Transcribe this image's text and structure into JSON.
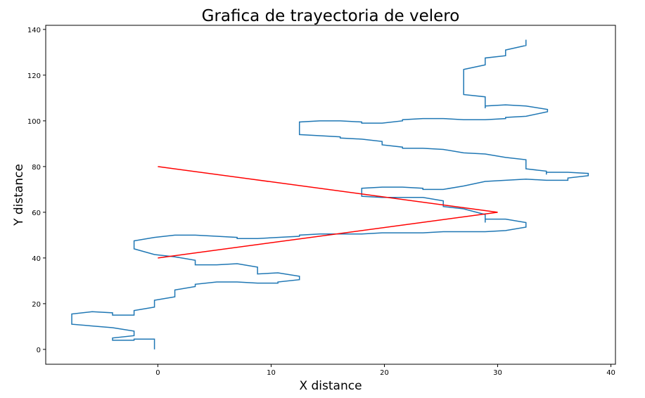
{
  "chart_data": {
    "type": "line",
    "title": "Grafica de trayectoria de velero",
    "xlabel": "X distance",
    "ylabel": "Y distance",
    "xlim": [
      -9.9,
      40.4
    ],
    "ylim": [
      -6.5,
      141.8
    ],
    "xticks": [
      0,
      10,
      20,
      30,
      40
    ],
    "yticks": [
      0,
      20,
      40,
      60,
      80,
      100,
      120,
      140
    ],
    "grid": false,
    "series": [
      {
        "color": "#1f77b4",
        "x": [
          -0.3,
          -0.3,
          -2.1,
          -2.1,
          -4,
          -4,
          -2.1,
          -2.1,
          -4,
          -7.6,
          -7.6,
          -5.8,
          -4,
          -4,
          -2.1,
          -2.1,
          -0.3,
          -0.3,
          1.5,
          1.5,
          3.3,
          3.3,
          5.2,
          7,
          8.8,
          10.6,
          10.6,
          12.5,
          12.5,
          10.6,
          8.8,
          8.8,
          7,
          5.2,
          3.3,
          3.3,
          1.5,
          -0.3,
          -2.1,
          -2.1,
          -0.3,
          1.5,
          3.3,
          5.2,
          7,
          7,
          8.8,
          10.6,
          12.5,
          12.5,
          14.3,
          16.1,
          18,
          19.8,
          21.6,
          23.4,
          25.2,
          27,
          28.9,
          30.7,
          32.5,
          32.5,
          30.7,
          28.9,
          28.9,
          28.9,
          27,
          25.2,
          25.2,
          23.4,
          21.6,
          19.8,
          18,
          18,
          19.8,
          21.6,
          23.4,
          23.4,
          25.2,
          27,
          28.9,
          30.7,
          32.5,
          34.3,
          36.2,
          36.2,
          38,
          38,
          36.2,
          34.3,
          34.3,
          34.3,
          32.5,
          32.5,
          30.7,
          28.9,
          27,
          25.2,
          23.4,
          21.6,
          21.6,
          19.8,
          19.8,
          18,
          16.1,
          16.1,
          14.3,
          12.5,
          12.5,
          14.3,
          16.1,
          18,
          18,
          19.8,
          21.6,
          21.6,
          23.4,
          25.2,
          27,
          28.9,
          30.7,
          30.7,
          32.5,
          34.4,
          34.4,
          32.5,
          30.7,
          28.9,
          28.9,
          28.9,
          27,
          27,
          28.9,
          28.9,
          30.7,
          30.7,
          32.5,
          32.5
        ],
        "values": [
          0,
          4.5,
          4.5,
          4,
          4,
          5,
          6,
          8,
          9.5,
          11,
          15.5,
          16.5,
          16,
          15,
          15,
          17,
          18.5,
          21.5,
          23,
          26,
          27.5,
          28.5,
          29.5,
          29.5,
          29,
          29,
          29.5,
          30.5,
          32,
          33.5,
          33,
          36,
          37.5,
          37,
          37,
          39,
          40.5,
          41.5,
          44,
          47.5,
          49,
          50,
          50,
          49.5,
          49,
          48.5,
          48.5,
          49,
          49.5,
          50,
          50.5,
          50.5,
          50.5,
          51,
          51,
          51,
          51.5,
          51.5,
          51.5,
          52,
          53.5,
          55.5,
          57,
          57,
          55.5,
          59,
          61.5,
          62.5,
          65,
          66.5,
          66.5,
          66.5,
          67,
          70.5,
          71,
          71,
          70.5,
          70,
          70,
          71.5,
          73.5,
          74,
          74.5,
          74,
          74,
          75,
          76,
          77,
          77.5,
          77.5,
          76.5,
          78,
          79,
          83,
          84,
          85.5,
          86,
          87.5,
          88,
          88,
          88.5,
          89.5,
          91,
          92,
          92.5,
          93,
          93.5,
          94,
          99.5,
          100,
          100,
          99.5,
          99,
          99,
          100,
          100.5,
          101,
          101,
          100.5,
          100.5,
          101,
          101.5,
          102,
          104,
          105,
          106.5,
          107,
          106.5,
          105.5,
          110.5,
          111.5,
          122.5,
          124.5,
          127.5,
          128.5,
          131,
          133,
          135.5
        ]
      },
      {
        "color": "#ff0000",
        "x": [
          0,
          30,
          0
        ],
        "values": [
          80,
          60,
          40
        ]
      }
    ]
  }
}
